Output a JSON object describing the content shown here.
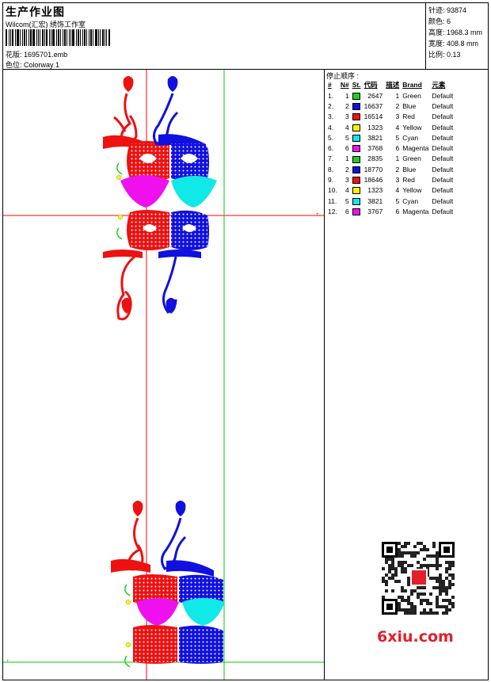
{
  "header": {
    "title": "生产作业图",
    "studio": "Wilcom(汇宏) 绣饰工作室",
    "design_label": "花版:",
    "design_file": "1695701.emb",
    "colorway_label": "色位:",
    "colorway": "Colorway 1"
  },
  "stats": [
    {
      "label": "针迹:",
      "value": "93874"
    },
    {
      "label": "颜色:",
      "value": "6"
    },
    {
      "label": "高度:",
      "value": "1968.3 mm"
    },
    {
      "label": "宽度:",
      "value": "408.8 mm"
    },
    {
      "label": "比例:",
      "value": "0.13"
    }
  ],
  "sequence": {
    "title": "停止顺序 :",
    "columns": [
      "#",
      "N#",
      "St.",
      "代码",
      "描述",
      "Brand",
      "元素"
    ],
    "rows": [
      {
        "idx": "1.",
        "n": "1",
        "st": "2647",
        "code": "1",
        "desc": "Green",
        "brand": "Default",
        "color": "#22cc22"
      },
      {
        "idx": "2.",
        "n": "2",
        "st": "16637",
        "code": "2",
        "desc": "Blue",
        "brand": "Default",
        "color": "#1010e0"
      },
      {
        "idx": "3.",
        "n": "3",
        "st": "16514",
        "code": "3",
        "desc": "Red",
        "brand": "Default",
        "color": "#ee1111"
      },
      {
        "idx": "4.",
        "n": "4",
        "st": "1323",
        "code": "4",
        "desc": "Yellow",
        "brand": "Default",
        "color": "#f5f500"
      },
      {
        "idx": "5.",
        "n": "5",
        "st": "3821",
        "code": "5",
        "desc": "Cyan",
        "brand": "Default",
        "color": "#11e8e8"
      },
      {
        "idx": "6.",
        "n": "6",
        "st": "3768",
        "code": "6",
        "desc": "Magenta",
        "brand": "Default",
        "color": "#ee11ee"
      },
      {
        "idx": "7.",
        "n": "1",
        "st": "2835",
        "code": "1",
        "desc": "Green",
        "brand": "Default",
        "color": "#22cc22"
      },
      {
        "idx": "8.",
        "n": "2",
        "st": "18770",
        "code": "2",
        "desc": "Blue",
        "brand": "Default",
        "color": "#1010e0"
      },
      {
        "idx": "9.",
        "n": "3",
        "st": "18646",
        "code": "3",
        "desc": "Red",
        "brand": "Default",
        "color": "#ee1111"
      },
      {
        "idx": "10.",
        "n": "4",
        "st": "1323",
        "code": "4",
        "desc": "Yellow",
        "brand": "Default",
        "color": "#f5f500"
      },
      {
        "idx": "11.",
        "n": "5",
        "st": "3821",
        "code": "5",
        "desc": "Cyan",
        "brand": "Default",
        "color": "#11e8e8"
      },
      {
        "idx": "12.",
        "n": "6",
        "st": "3767",
        "code": "6",
        "desc": "Magenta",
        "brand": "Default",
        "color": "#ee11ee"
      }
    ]
  },
  "watermark": {
    "site": "6xiu.com",
    "qr_icon": "qr-code-icon"
  },
  "colors": {
    "red": "#ee1111",
    "blue": "#1010e0",
    "cyan": "#11e8e8",
    "magenta": "#ee11ee",
    "green": "#22cc22",
    "yellow": "#f5f500",
    "guide_red": "#ff0000",
    "guide_green": "#00cc00"
  }
}
